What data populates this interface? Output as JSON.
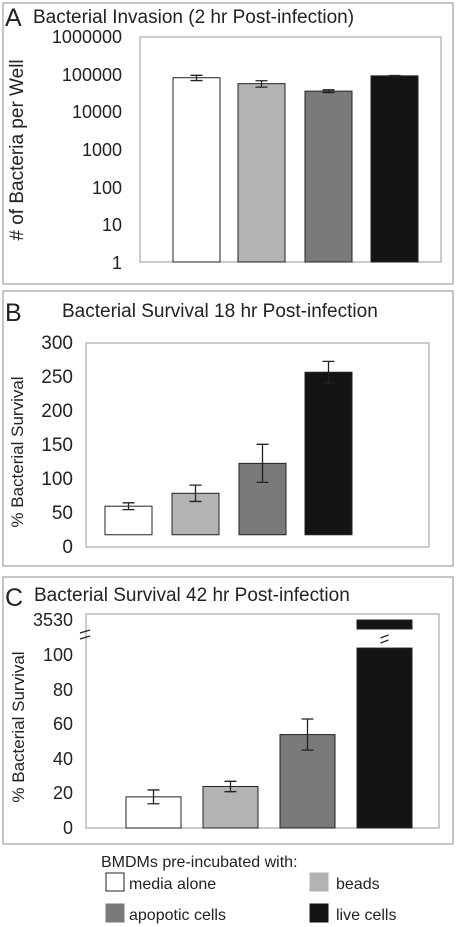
{
  "colors": {
    "media_alone": "#ffffff",
    "beads": "#b3b3b3",
    "apopotic_cells": "#7a7a7a",
    "live_cells": "#141414",
    "bar_stroke": "#222222",
    "panel_border": "#8c8c8c",
    "axis_border": "#999999"
  },
  "legend": {
    "title": "BMDMs pre-incubated with:",
    "items": [
      {
        "label": "media alone",
        "color_key": "media_alone"
      },
      {
        "label": "beads",
        "color_key": "beads"
      },
      {
        "label": "apopotic cells",
        "color_key": "apopotic_cells"
      },
      {
        "label": "live cells",
        "color_key": "live_cells"
      }
    ]
  },
  "chart_data": [
    {
      "panel_letter": "A",
      "type": "bar",
      "title": "Bacterial Invasion (2 hr Post-infection)",
      "ylabel": "# of Bacteria per Well",
      "yscale": "log",
      "ylim": [
        1,
        1000000
      ],
      "yticks": [
        "1",
        "10",
        "100",
        "1000",
        "10000",
        "100000",
        "1000000"
      ],
      "categories": [
        "media alone",
        "beads",
        "apopotic cells",
        "live cells"
      ],
      "values": [
        82000,
        57000,
        36000,
        92000
      ],
      "errors": [
        13000,
        11000,
        3000,
        2000
      ]
    },
    {
      "panel_letter": "B",
      "type": "bar",
      "title": "Bacterial Survival 18 hr Post-infection",
      "ylabel": "% Bacterial Survival",
      "yscale": "linear",
      "ylim": [
        0,
        300
      ],
      "bar_base": 18,
      "yticks": [
        "0",
        "50",
        "100",
        "150",
        "200",
        "250",
        "300"
      ],
      "categories": [
        "media alone",
        "beads",
        "apopotic cells",
        "live cells"
      ],
      "values": [
        60,
        79,
        123,
        257
      ],
      "errors": [
        5,
        12,
        28,
        16
      ]
    },
    {
      "panel_letter": "C",
      "type": "bar",
      "title": "Bacterial Survival 42 hr Post-infection",
      "ylabel": "% Bacterial Survival",
      "yscale": "broken",
      "ylim": [
        0,
        3530
      ],
      "axis_break": [
        104,
        3530
      ],
      "yticks": [
        "0",
        "20",
        "40",
        "60",
        "80",
        "100",
        "3530"
      ],
      "categories": [
        "media alone",
        "beads",
        "apopotic cells",
        "live cells"
      ],
      "values": [
        18,
        24,
        54,
        3530
      ],
      "errors": [
        4,
        3,
        9,
        null
      ]
    }
  ]
}
